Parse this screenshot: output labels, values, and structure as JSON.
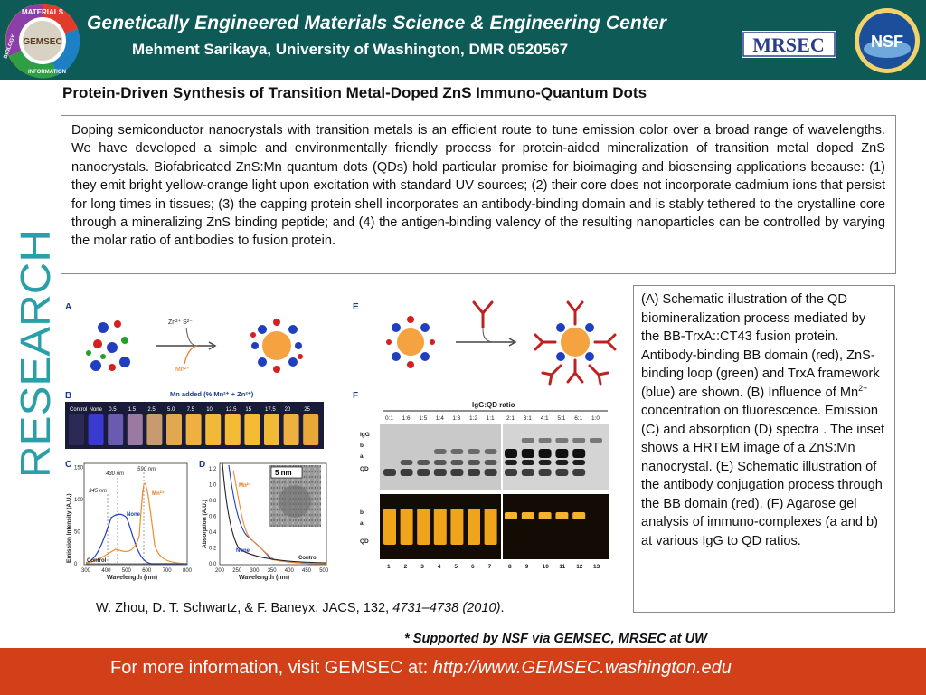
{
  "header": {
    "title": "Genetically Engineered Materials Science & Engineering Center",
    "subtitle": "Mehment  Sarikaya, University of Washington, DMR 0520567",
    "logos": {
      "gemsec": {
        "center": "GEMSEC",
        "ring_top": "MATERIALS",
        "ring_left": "BIOLOGY",
        "ring_bottom": "INFORMATION"
      },
      "mrsec": "MRSEC",
      "nsf": "NSF"
    },
    "colors": {
      "band": "#0e5a57",
      "text": "#ffffff"
    }
  },
  "heading": "Protein-Driven Synthesis of Transition Metal-Doped ZnS Immuno-Quantum Dots",
  "abstract": "Doping semiconductor nanocrystals with transition metals is an efficient route to tune emission color over a broad range of wavelengths. We have developed a simple and environmentally friendly process for protein-aided mineralization of transition metal doped ZnS nanocrystals. Biofabricated ZnS:Mn quantum dots (QDs) hold particular promise for bioimaging and biosensing applications because: (1) they emit bright yellow-orange light upon excitation with standard UV sources; (2) their core does not incorporate cadmium ions that persist for long times in tissues; (3) the capping protein shell incorporates an antibody-binding domain and is stably tethered to the crystalline core through a mineralizing ZnS binding peptide; and (4) the antigen-binding valency of the resulting nanoparticles can be controlled by varying  the molar ratio of antibodies to fusion protein.",
  "side_label": "RESEARCH",
  "figure": {
    "panel_A": {
      "letter": "A",
      "reagent_top": "Zn²⁺  S²⁻",
      "reagent_bottom": "Mn²⁺"
    },
    "panel_B": {
      "letter": "B",
      "title": "Mn added (% Mn²⁺ + Zn²⁺)",
      "lane_labels": [
        "Control",
        "None",
        "0.5",
        "1.5",
        "2.5",
        "5.0",
        "7.5",
        "10",
        "12.5",
        "15",
        "17.5",
        "20",
        "25"
      ]
    },
    "panel_C": {
      "letter": "C",
      "ylabel": "Emission Intensity (A.U.)",
      "xlabel": "Wavelength (nm)",
      "xticks": [
        "300",
        "400",
        "500",
        "600",
        "700",
        "800"
      ],
      "yticks": [
        "0",
        "50",
        "100",
        "150"
      ],
      "annotations": [
        "345 nm",
        "430 nm",
        "590 nm"
      ],
      "series_labels": [
        "None",
        "Mn²⁺",
        "Control"
      ]
    },
    "panel_D": {
      "letter": "D",
      "ylabel": "Absorption (A.U.)",
      "xlabel": "Wavelength (nm)",
      "xticks": [
        "200",
        "250",
        "300",
        "350",
        "400",
        "450",
        "500"
      ],
      "yticks": [
        "0.0",
        "0.2",
        "0.4",
        "0.6",
        "0.8",
        "1.0",
        "1.2"
      ],
      "inset_scale": "5 nm",
      "series_labels": [
        "Mn²⁺",
        "None",
        "Control"
      ]
    },
    "panel_E": {
      "letter": "E"
    },
    "panel_F": {
      "letter": "F",
      "title": "IgG:QD ratio",
      "ratios": [
        "0:1",
        "1:6",
        "1:5",
        "1:4",
        "1:3",
        "1:2",
        "1:1",
        "2:1",
        "3:1",
        "4:1",
        "5:1",
        "6:1",
        "1:0"
      ],
      "row_labels_top": [
        "IgG",
        "b",
        "a",
        "QD"
      ],
      "row_labels_bottom": [
        "b",
        "a",
        "QD"
      ],
      "lanes": [
        "1",
        "2",
        "3",
        "4",
        "5",
        "6",
        "7",
        "8",
        "9",
        "10",
        "11",
        "12",
        "13"
      ]
    }
  },
  "caption": {
    "part1": "(A) Schematic illustration of the QD biomineralization process mediated by the BB-TrxA::CT43 fusion protein. Antibody-binding BB domain (red), ZnS-binding loop (green) and TrxA framework (blue) are shown. (B) Influence of Mn",
    "sup": "2+",
    "part2": " concentration on fluorescence. Emission (C) and absorption (D) spectra . The inset shows a HRTEM image of a ZnS:Mn nanocrystal. (E) Schematic illustration of the antibody conjugation process through the BB domain (red). (F) Agarose gel analysis of immuno-complexes (a and b) at various IgG to QD ratios."
  },
  "citation": {
    "authors": "W. Zhou, D. T. Schwartz, & F. Baneyx. JACS, 132, ",
    "pages": "4731–4738 (2010)",
    "end": "."
  },
  "support_note": "* Supported by NSF via GEMSEC, MRSEC at UW",
  "footer": {
    "prefix": "For more information, visit GEMSEC at: ",
    "url": "http://www.GEMSEC.washington.edu",
    "color": "#d2401a"
  }
}
